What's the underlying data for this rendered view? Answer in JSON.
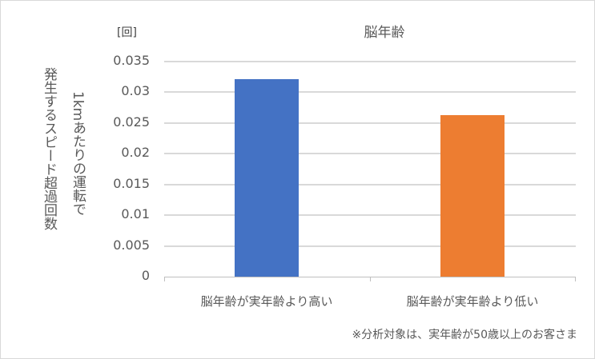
{
  "chart_data": {
    "type": "bar",
    "title": "脳年齢",
    "unit_label": "[回]",
    "ylabel": [
      "発生するスピード超過回数",
      "1kmあたりの運転で"
    ],
    "xlabel": "",
    "categories": [
      "脳年齢が実年齢より高い",
      "脳年齢が実年齢より低い"
    ],
    "values": [
      0.0321,
      0.0263
    ],
    "colors": [
      "#4472c4",
      "#ed7d31"
    ],
    "ylim": [
      0,
      0.035
    ],
    "yticks": [
      "0.035",
      "0.03",
      "0.025",
      "0.02",
      "0.015",
      "0.01",
      "0.005",
      "0"
    ],
    "grid": true,
    "legend": "none",
    "annotation": "※分析対象は、実年齢が50歳以上のお客さま"
  }
}
